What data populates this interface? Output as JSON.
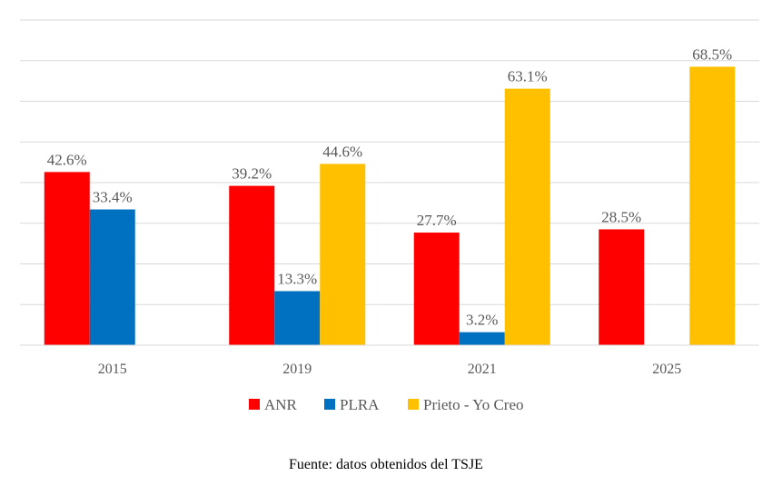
{
  "chart_data": {
    "type": "bar",
    "categories": [
      "2015",
      "2019",
      "2021",
      "2025"
    ],
    "series": [
      {
        "name": "ANR",
        "color": "#ff0000",
        "values": [
          42.6,
          39.2,
          27.7,
          28.5
        ],
        "labels": [
          "42.6%",
          "39.2%",
          "27.7%",
          "28.5%"
        ]
      },
      {
        "name": "PLRA",
        "color": "#0070c0",
        "values": [
          33.4,
          13.3,
          3.2,
          null
        ],
        "labels": [
          "33.4%",
          "13.3%",
          "3.2%",
          null
        ]
      },
      {
        "name": "Prieto - Yo Creo",
        "color": "#ffc000",
        "values": [
          null,
          44.6,
          63.1,
          68.5
        ],
        "labels": [
          null,
          "44.6%",
          "63.1%",
          "68.5%"
        ]
      }
    ],
    "ylim": [
      0,
      80
    ],
    "grid": true,
    "legend_position": "bottom",
    "title": "",
    "xlabel": "",
    "ylabel": ""
  },
  "source_note": "Fuente: datos obtenidos del TSJE"
}
